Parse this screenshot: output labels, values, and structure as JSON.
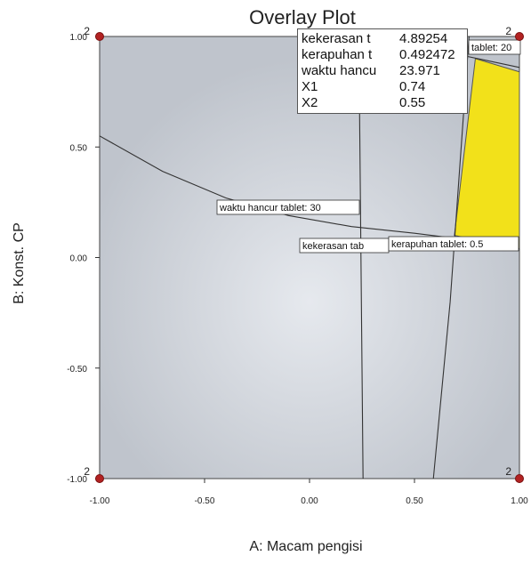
{
  "chart_data": {
    "type": "contour",
    "title": "Overlay Plot",
    "xlabel": "A: Macam pengisi",
    "ylabel": "B: Konst. CP",
    "xlim": [
      -1.0,
      1.0
    ],
    "ylim": [
      -1.0,
      1.0
    ],
    "x_ticks": [
      "-1.00",
      "-0.50",
      "0.00",
      "0.50",
      "1.00"
    ],
    "y_ticks": [
      "-1.00",
      "-0.50",
      "0.00",
      "0.50",
      "1.00"
    ],
    "contours": [
      {
        "label": "waktu hancur tablet: 30",
        "points": [
          [
            -1.0,
            0.55
          ],
          [
            -0.7,
            0.39
          ],
          [
            -0.4,
            0.27
          ],
          [
            -0.1,
            0.19
          ],
          [
            0.2,
            0.14
          ],
          [
            0.5,
            0.11
          ],
          [
            0.75,
            0.08
          ],
          [
            1.0,
            0.04
          ]
        ]
      },
      {
        "label": "kekerasan tab",
        "points": [
          [
            0.235,
            1.0
          ],
          [
            0.24,
            0.5
          ],
          [
            0.245,
            0.0
          ],
          [
            0.25,
            -0.5
          ],
          [
            0.255,
            -1.0
          ]
        ]
      },
      {
        "label": "kerapuhan tablet: 0.5",
        "points": [
          [
            0.76,
            1.0
          ],
          [
            0.73,
            0.6
          ],
          [
            0.7,
            0.2
          ],
          [
            0.67,
            -0.2
          ],
          [
            0.63,
            -0.6
          ],
          [
            0.59,
            -1.0
          ]
        ]
      },
      {
        "label": "tablet: 20",
        "points": [
          [
            0.7,
            0.92
          ],
          [
            0.85,
            0.89
          ],
          [
            1.0,
            0.86
          ]
        ]
      }
    ],
    "feasible_region": {
      "color": "#f2e11a",
      "points": [
        [
          0.79,
          0.9
        ],
        [
          1.0,
          0.84
        ],
        [
          1.0,
          0.04
        ],
        [
          0.69,
          0.1
        ]
      ]
    },
    "design_points": [
      {
        "x": -1.0,
        "y": 1.0,
        "label": "2"
      },
      {
        "x": 1.0,
        "y": 1.0,
        "label": "2"
      },
      {
        "x": -1.0,
        "y": -1.0,
        "label": "2"
      },
      {
        "x": 1.0,
        "y": -1.0,
        "label": "2"
      }
    ],
    "flag": {
      "rows": [
        {
          "name": "kekerasan t",
          "value": "4.89254"
        },
        {
          "name": "kerapuhan t",
          "value": "0.492472"
        },
        {
          "name": "waktu hancu",
          "value": "23.971"
        },
        {
          "name": "X1",
          "value": "0.74"
        },
        {
          "name": "X2",
          "value": "0.55"
        }
      ]
    },
    "colors": {
      "plot_fill": "#c7cbd3",
      "feasible": "#f2e11a",
      "design_point": "#b22222",
      "contour": "#333333"
    },
    "grid": false
  }
}
